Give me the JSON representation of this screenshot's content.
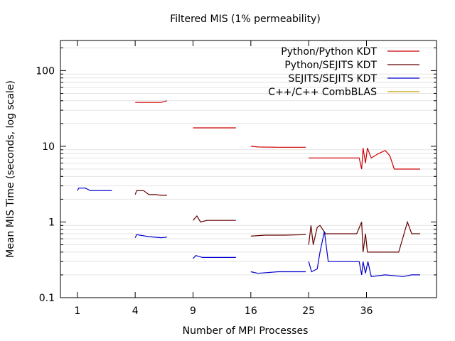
{
  "chart_data": {
    "type": "line",
    "title": "Filtered MIS (1% permeability)",
    "xlabel": "Number of MPI Processes",
    "ylabel": "Mean MIS Time (seconds, log scale)",
    "x_scale": "sqrt",
    "y_scale": "log",
    "xlim": [
      0.5,
      52
    ],
    "ylim": [
      0.1,
      250
    ],
    "grid": "horizontal minor lines",
    "legend_position": "top-right",
    "x_ticks": [
      {
        "value": 1,
        "label": "1"
      },
      {
        "value": 4,
        "label": "4"
      },
      {
        "value": 9,
        "label": "9"
      },
      {
        "value": 16,
        "label": "16"
      },
      {
        "value": 25,
        "label": "25"
      },
      {
        "value": 36,
        "label": "36"
      }
    ],
    "y_ticks": [
      {
        "value": 0.1,
        "label": "0.1"
      },
      {
        "value": 1,
        "label": "1"
      },
      {
        "value": 10,
        "label": "10"
      },
      {
        "value": 100,
        "label": "100"
      }
    ],
    "series": [
      {
        "name": "Python/Python KDT",
        "color": "#cc0000",
        "segments": [
          [
            [
              4,
              38
            ],
            [
              5,
              38
            ],
            [
              6,
              38
            ],
            [
              6.5,
              40
            ]
          ],
          [
            [
              9,
              17.5
            ],
            [
              11,
              17.5
            ],
            [
              14,
              17.5
            ]
          ],
          [
            [
              16,
              10
            ],
            [
              17,
              9.8
            ],
            [
              20,
              9.7
            ],
            [
              24.5,
              9.7
            ]
          ],
          [
            [
              25,
              7
            ],
            [
              28,
              7
            ],
            [
              31,
              7
            ],
            [
              34.5,
              7
            ],
            [
              35,
              5
            ],
            [
              35.3,
              9.5
            ],
            [
              35.8,
              6
            ],
            [
              36.2,
              9.5
            ],
            [
              37,
              7
            ],
            [
              38.5,
              8
            ],
            [
              40,
              8.8
            ],
            [
              41,
              7.5
            ],
            [
              42,
              5
            ],
            [
              45,
              5
            ],
            [
              48,
              5
            ]
          ]
        ]
      },
      {
        "name": "Python/SEJITS KDT",
        "color": "#660000",
        "segments": [
          [
            [
              4,
              2.3
            ],
            [
              4.1,
              2.6
            ],
            [
              4.6,
              2.6
            ],
            [
              5,
              2.3
            ],
            [
              5.5,
              2.3
            ],
            [
              6,
              2.25
            ],
            [
              6.5,
              2.25
            ]
          ],
          [
            [
              9,
              1.05
            ],
            [
              9.4,
              1.2
            ],
            [
              9.8,
              1.0
            ],
            [
              10.5,
              1.05
            ],
            [
              12,
              1.05
            ],
            [
              14,
              1.05
            ]
          ],
          [
            [
              16,
              0.65
            ],
            [
              18,
              0.67
            ],
            [
              21,
              0.67
            ],
            [
              24.5,
              0.68
            ]
          ],
          [
            [
              25,
              0.5
            ],
            [
              25.4,
              0.9
            ],
            [
              25.8,
              0.5
            ],
            [
              26.5,
              0.85
            ],
            [
              27,
              0.9
            ],
            [
              28,
              0.7
            ],
            [
              30,
              0.7
            ],
            [
              34,
              0.7
            ],
            [
              35,
              1.0
            ],
            [
              35.3,
              0.4
            ],
            [
              35.8,
              0.7
            ],
            [
              36.2,
              0.4
            ],
            [
              37,
              0.4
            ],
            [
              40,
              0.4
            ],
            [
              43,
              0.4
            ],
            [
              45,
              1.0
            ],
            [
              46,
              0.7
            ],
            [
              48,
              0.7
            ]
          ]
        ]
      },
      {
        "name": "SEJITS/SEJITS KDT",
        "color": "#0000cc",
        "segments": [
          [
            [
              1,
              2.6
            ],
            [
              1.05,
              2.8
            ],
            [
              1.3,
              2.8
            ],
            [
              1.5,
              2.6
            ],
            [
              2,
              2.6
            ],
            [
              2.55,
              2.6
            ]
          ],
          [
            [
              4,
              0.62
            ],
            [
              4.1,
              0.68
            ],
            [
              5,
              0.64
            ],
            [
              6,
              0.62
            ],
            [
              6.5,
              0.63
            ]
          ],
          [
            [
              9,
              0.33
            ],
            [
              9.3,
              0.36
            ],
            [
              10,
              0.34
            ],
            [
              12,
              0.34
            ],
            [
              14,
              0.34
            ]
          ],
          [
            [
              16,
              0.22
            ],
            [
              17,
              0.21
            ],
            [
              20,
              0.22
            ],
            [
              24.5,
              0.22
            ]
          ],
          [
            [
              25,
              0.3
            ],
            [
              25.5,
              0.22
            ],
            [
              26.5,
              0.24
            ],
            [
              27,
              0.4
            ],
            [
              27.8,
              0.75
            ],
            [
              28.5,
              0.3
            ],
            [
              31,
              0.3
            ],
            [
              34.5,
              0.3
            ],
            [
              35,
              0.2
            ],
            [
              35.3,
              0.3
            ],
            [
              35.8,
              0.21
            ],
            [
              36.3,
              0.3
            ],
            [
              37,
              0.19
            ],
            [
              40,
              0.2
            ],
            [
              44,
              0.19
            ],
            [
              46,
              0.2
            ],
            [
              48,
              0.2
            ]
          ]
        ]
      },
      {
        "name": "C++/C++ CombBLAS",
        "color": "#c8a000",
        "segments": []
      }
    ]
  }
}
